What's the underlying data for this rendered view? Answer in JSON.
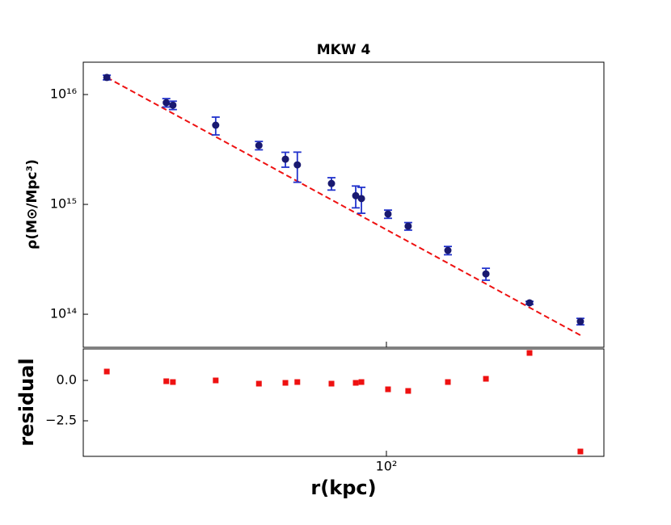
{
  "chart_data": [
    {
      "type": "scatter",
      "title": "MKW 4",
      "ylabel": "ρ(M⊙/Mpc³)",
      "log_x": true,
      "log_y": true,
      "x": [
        21.3,
        29.6,
        30.7,
        38.9,
        49.4,
        57.2,
        61.1,
        73.8,
        84.4,
        87.1,
        100.9,
        112.8,
        140.5,
        173.4,
        220.7,
        292.4
      ],
      "values": [
        1.43e+16,
        8440000000000000.0,
        8000000000000000.0,
        5260000000000000.0,
        3440000000000000.0,
        2580000000000000.0,
        2290000000000000.0,
        1550000000000000.0,
        1200000000000000.0,
        1130000000000000.0,
        817000000000000.0,
        633000000000000.0,
        381000000000000.0,
        233000000000000.0,
        127000000000000.0,
        85900000000000.0
      ],
      "errors": [
        700000000000000.0,
        740000000000000.0,
        700000000000000.0,
        970000000000000.0,
        300000000000000.0,
        400000000000000.0,
        700000000000000.0,
        200000000000000.0,
        270000000000000.0,
        300000000000000.0,
        70000000000000.0,
        50000000000000.0,
        33000000000000.0,
        29000000000000.0,
        4000000000000.0,
        5800000000000.0
      ],
      "color": "#191970",
      "error_color": "#2233cc",
      "fit_x": [
        21.3,
        292.4
      ],
      "fit_values": [
        1.43e+16,
        64400000000000.0
      ],
      "fit_color": "#ee1111",
      "xlim": [
        18.7,
        333
      ],
      "ylim": [
        50000000000000.0,
        1.97e+16
      ],
      "xticks": [
        {
          "value": 100,
          "label": "10²"
        }
      ],
      "yticks": [
        {
          "value": 100000000000000.0,
          "label": "10¹⁴"
        },
        {
          "value": 1000000000000000.0,
          "label": "10¹⁵"
        },
        {
          "value": 1e+16,
          "label": "10¹⁶"
        }
      ]
    },
    {
      "type": "scatter",
      "ylabel": "residual",
      "xlabel": "r(kpc)",
      "log_x": true,
      "log_y": false,
      "x": [
        21.3,
        29.6,
        30.7,
        38.9,
        49.4,
        57.2,
        61.1,
        73.8,
        84.4,
        87.1,
        100.9,
        112.8,
        140.5,
        173.4,
        220.7,
        292.4
      ],
      "values": [
        0.55,
        -0.05,
        -0.1,
        0,
        -0.2,
        -0.15,
        -0.1,
        -0.2,
        -0.15,
        -0.1,
        -0.55,
        -0.65,
        -0.1,
        0.1,
        1.7,
        -4.4
      ],
      "color": "#ee1111",
      "xlim": [
        18.7,
        333
      ],
      "ylim": [
        -4.7,
        1.95
      ],
      "xticks": [
        {
          "value": 100,
          "label": "10²"
        }
      ],
      "yticks": [
        {
          "value": 0,
          "label": "0.0"
        },
        {
          "value": -2.5,
          "label": "−2.5"
        }
      ]
    }
  ]
}
